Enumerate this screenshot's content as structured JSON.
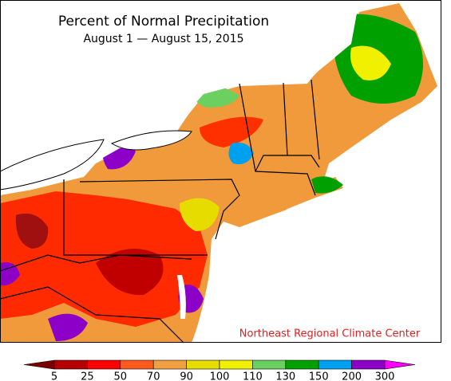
{
  "title": "Percent of Normal Precipitation",
  "subtitle": "August 1 — August 15, 2015",
  "credit": "Northeast Regional Climate Center",
  "legend": {
    "ticks": [
      5,
      25,
      50,
      70,
      90,
      100,
      110,
      130,
      150,
      200,
      300
    ],
    "colors": [
      "#7a0000",
      "#b40000",
      "#ff0000",
      "#ff5a1e",
      "#f0a040",
      "#e6dc00",
      "#f0f000",
      "#6cd060",
      "#00a000",
      "#00a0f0",
      "#8c00c8",
      "#ff00ff"
    ]
  }
}
